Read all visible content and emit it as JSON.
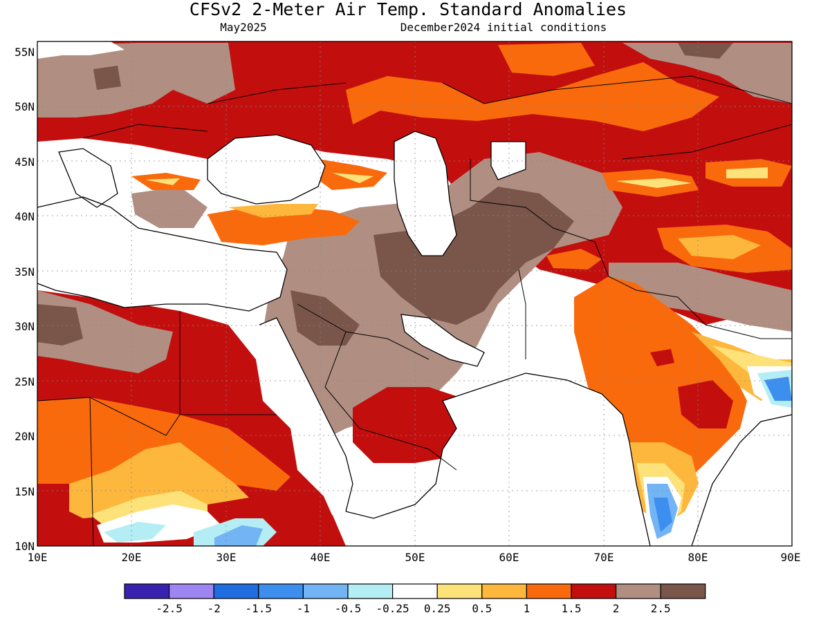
{
  "header": {
    "title": "CFSv2 2-Meter Air Temp. Standard Anomalies",
    "valid": "May2025",
    "initial": "December2024 initial conditions"
  },
  "axes": {
    "lat_labels": [
      "55N",
      "50N",
      "45N",
      "40N",
      "35N",
      "30N",
      "25N",
      "20N",
      "15N",
      "10N"
    ],
    "lon_labels": [
      "10E",
      "20E",
      "30E",
      "40E",
      "50E",
      "60E",
      "70E",
      "80E",
      "90E"
    ]
  },
  "legend": {
    "bins": [
      {
        "color": "#3a22b0"
      },
      {
        "color": "#9d86f2"
      },
      {
        "color": "#1f6de0"
      },
      {
        "color": "#3d8fef"
      },
      {
        "color": "#73b4f5"
      },
      {
        "color": "#b4eef4"
      },
      {
        "color": "#ffffff"
      },
      {
        "color": "#fde27a"
      },
      {
        "color": "#fdb73c"
      },
      {
        "color": "#f96a0c"
      },
      {
        "color": "#c30e0e"
      },
      {
        "color": "#b08f82"
      },
      {
        "color": "#79554a"
      }
    ],
    "labels": [
      "-2.5",
      "-2",
      "-1.5",
      "-1",
      "-0.5",
      "-0.25",
      "0.25",
      "0.5",
      "1",
      "1.5",
      "2",
      "2.5"
    ]
  },
  "colors": {
    "warm_1": "#fde27a",
    "warm_2": "#fdb73c",
    "warm_3": "#f96a0c",
    "warm_4": "#c30e0e",
    "warm_5": "#b08f82",
    "warm_6": "#79554a",
    "cool_1": "#b4eef4",
    "cool_2": "#73b4f5",
    "cool_3": "#3d8fef",
    "cool_4": "#1f6de0"
  }
}
